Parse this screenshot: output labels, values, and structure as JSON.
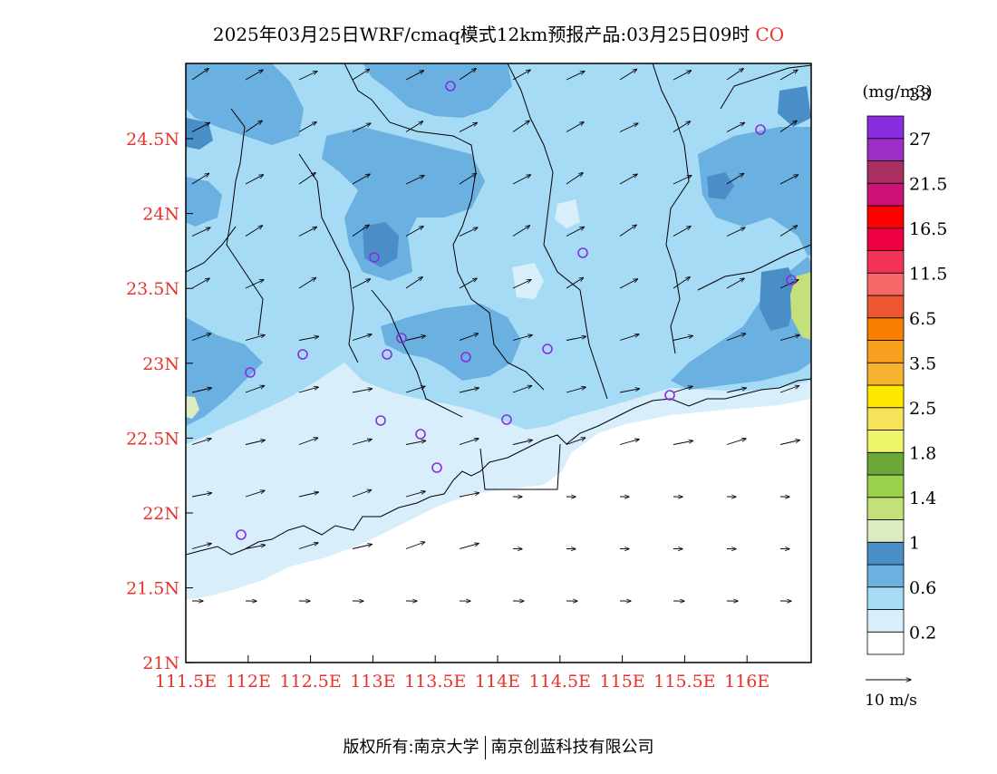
{
  "title": {
    "main": "2025年03月25日WRF/cmaq模式12km预报产品:03月25日09时",
    "species": "CO"
  },
  "axes": {
    "lat_ticks": [
      "24.5N",
      "24N",
      "23.5N",
      "23N",
      "22.5N",
      "22N",
      "21.5N",
      "21N"
    ],
    "lon_ticks": [
      "111.5E",
      "112E",
      "112.5E",
      "113E",
      "113.5E",
      "114E",
      "114.5E",
      "115E",
      "115.5E",
      "116E"
    ]
  },
  "colorbar": {
    "unit": "(mg/m3)",
    "colors": [
      "#ffffff",
      "#d8eefa",
      "#a6dbf6",
      "#6ab0e0",
      "#4a8ec8",
      "#dcebc0",
      "#c4e07a",
      "#9bd04d",
      "#6aa83a",
      "#eef56a",
      "#f6e35a",
      "#ffe800",
      "#f8b232",
      "#f7a01d",
      "#f87f00",
      "#ec5630",
      "#f76868",
      "#f33357",
      "#ee0044",
      "#ff0000",
      "#cc1177",
      "#a82f5f",
      "#9c2dc6",
      "#8a2de0"
    ],
    "labels": [
      "0.2",
      "0.6",
      "1",
      "1.4",
      "1.8",
      "2.5",
      "3.5",
      "6.5",
      "11.5",
      "16.5",
      "21.5",
      "27",
      "33"
    ]
  },
  "reference_vector": {
    "label": "10 m/s"
  },
  "footer": {
    "left": "版权所有:南京大学",
    "right": "南京创蓝科技有限公司"
  }
}
